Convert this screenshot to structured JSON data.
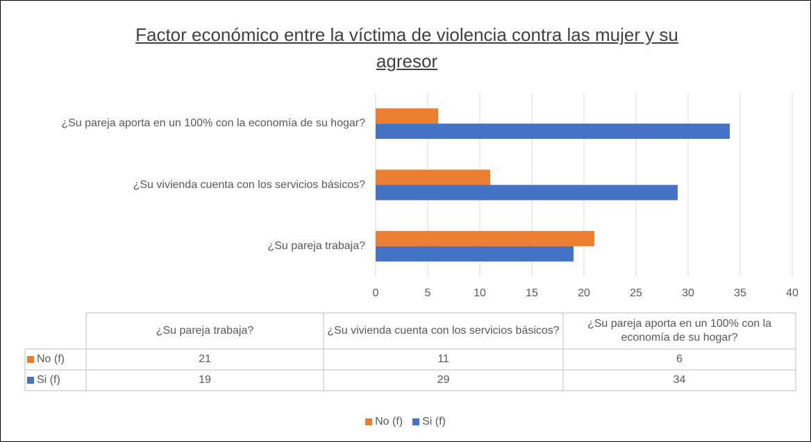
{
  "chart_data": {
    "type": "bar",
    "orientation": "horizontal",
    "title": "Factor económico entre la víctima de violencia contra las mujer y su agresor",
    "categories": [
      "¿Su pareja trabaja?",
      "¿Su vivienda cuenta con los servicios básicos?",
      "¿Su pareja aporta en un 100% con la economía de su hogar?"
    ],
    "series": [
      {
        "name": "No (f)",
        "color": "#ED7D31",
        "values": [
          21,
          11,
          6
        ]
      },
      {
        "name": "Si (f)",
        "color": "#4472C4",
        "values": [
          19,
          29,
          34
        ]
      }
    ],
    "xlim": [
      0,
      40
    ],
    "xticks": [
      0,
      5,
      10,
      15,
      20,
      25,
      30,
      35,
      40
    ],
    "grid": true,
    "legend": "bottom",
    "data_table": true
  }
}
